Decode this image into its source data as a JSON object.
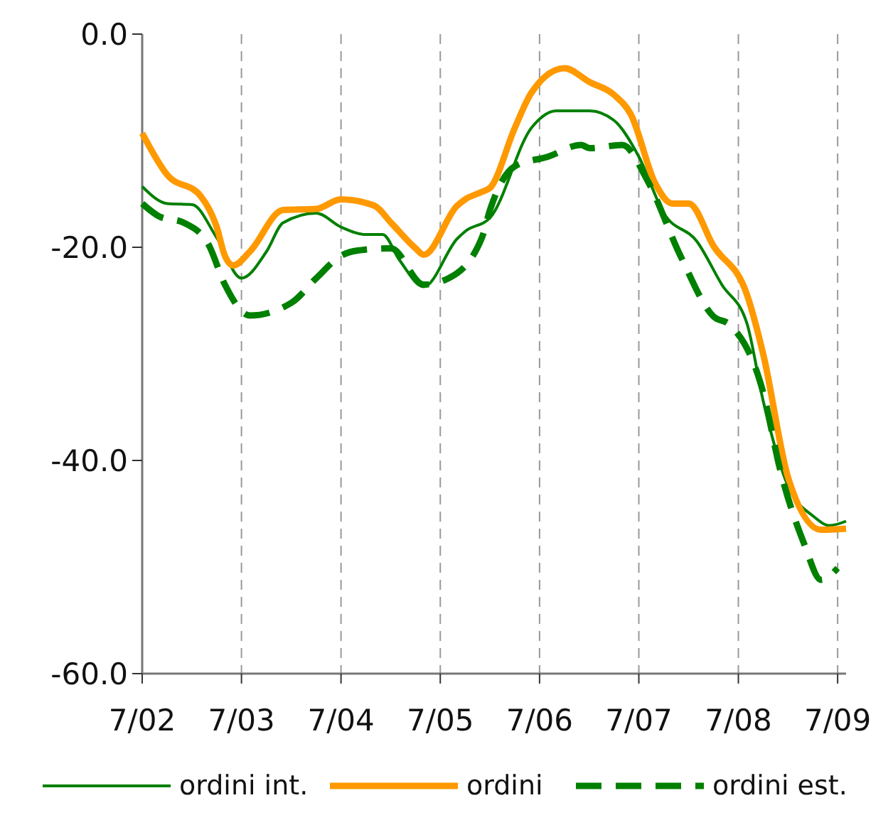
{
  "chart_data": {
    "type": "line",
    "xlim": [
      "2002-07",
      "2009-08"
    ],
    "ylim": [
      -60,
      0
    ],
    "yticks": [
      {
        "value": 0,
        "label": "0.0"
      },
      {
        "value": -20,
        "label": "-20.0"
      },
      {
        "value": -40,
        "label": "-40.0"
      },
      {
        "value": -60,
        "label": "-60.0"
      }
    ],
    "xticks": [
      {
        "value": "2002-07",
        "label": "7/02"
      },
      {
        "value": "2003-07",
        "label": "7/03"
      },
      {
        "value": "2004-07",
        "label": "7/04"
      },
      {
        "value": "2005-07",
        "label": "7/05"
      },
      {
        "value": "2006-07",
        "label": "7/06"
      },
      {
        "value": "2007-07",
        "label": "7/07"
      },
      {
        "value": "2008-07",
        "label": "7/08"
      },
      {
        "value": "2009-07",
        "label": "7/09"
      }
    ],
    "grid": "x",
    "legend": "bottom",
    "series": [
      {
        "name": "ordini int.",
        "color": "#008000",
        "line_style": "solid",
        "x": [
          "2002-07",
          "2002-10",
          "2003-01",
          "2003-04",
          "2003-07",
          "2003-10",
          "2003-12",
          "2004-04",
          "2004-07",
          "2004-10",
          "2004-12",
          "2005-02",
          "2005-05",
          "2005-09",
          "2005-10",
          "2006-01",
          "2006-06",
          "2006-09",
          "2007-01",
          "2007-04",
          "2007-07",
          "2007-10",
          "2008-02",
          "2008-05",
          "2008-08",
          "2008-10",
          "2009-01",
          "2009-04",
          "2009-06",
          "2009-08"
        ],
        "values": [
          -14.3,
          -15.9,
          -16,
          -19.1,
          -22.9,
          -20.4,
          -17.7,
          -16.8,
          -18.1,
          -18.8,
          -18.8,
          -21.2,
          -23.7,
          -19.2,
          -18.5,
          -17.2,
          -8.8,
          -7.2,
          -7.2,
          -8.1,
          -11.5,
          -16.8,
          -19.5,
          -23.5,
          -27.1,
          -34.5,
          -42.5,
          -45.2,
          -46.1,
          -45.7
        ]
      },
      {
        "name": "ordini",
        "color": "#ff9900",
        "line_style": "solid",
        "x": [
          "2002-07",
          "2002-10",
          "2003-02",
          "2003-04",
          "2003-05",
          "2003-06",
          "2003-08",
          "2003-12",
          "2004-04",
          "2004-07",
          "2004-11",
          "2005-01",
          "2005-04",
          "2005-05",
          "2005-09",
          "2005-10",
          "2005-12",
          "2006-01",
          "2006-04",
          "2006-06",
          "2006-10",
          "2007-01",
          "2007-04",
          "2007-06",
          "2007-09",
          "2007-11",
          "2008-01",
          "2008-04",
          "2008-08",
          "2008-10",
          "2009-01",
          "2009-05",
          "2009-08"
        ],
        "values": [
          -9.3,
          -13.2,
          -15.2,
          -18.1,
          -20.8,
          -21.7,
          -20.4,
          -16.5,
          -16.4,
          -15.5,
          -16.1,
          -17.7,
          -20.1,
          -20.7,
          -16.1,
          -15.5,
          -14.8,
          -14.4,
          -8.8,
          -5.5,
          -3.2,
          -4.5,
          -5.7,
          -7.5,
          -14.1,
          -15.9,
          -15.9,
          -19.9,
          -24.4,
          -30.1,
          -41.7,
          -46.5,
          -46.4
        ]
      },
      {
        "name": "ordini est.",
        "color": "#008000",
        "line_style": "dashed",
        "x": [
          "2002-07",
          "2002-09",
          "2002-12",
          "2003-03",
          "2003-05",
          "2003-08",
          "2004-01",
          "2004-04",
          "2004-07",
          "2004-09",
          "2005-01",
          "2005-05",
          "2005-08",
          "2005-12",
          "2006-01",
          "2006-04",
          "2006-08",
          "2006-12",
          "2007-01",
          "2007-05",
          "2007-08",
          "2007-12",
          "2008-04",
          "2008-06",
          "2008-10",
          "2008-12",
          "2009-03",
          "2009-05",
          "2009-07"
        ],
        "values": [
          -15.9,
          -17.1,
          -17.7,
          -19.7,
          -23.5,
          -26.4,
          -25.2,
          -22.9,
          -20.8,
          -20.3,
          -20.1,
          -23.5,
          -22.9,
          -19.1,
          -16.4,
          -12.4,
          -11.5,
          -10.4,
          -10.7,
          -10.4,
          -13.7,
          -20.8,
          -26.5,
          -27.3,
          -33.7,
          -40.8,
          -47.9,
          -51.2,
          -50.1
        ]
      }
    ]
  }
}
